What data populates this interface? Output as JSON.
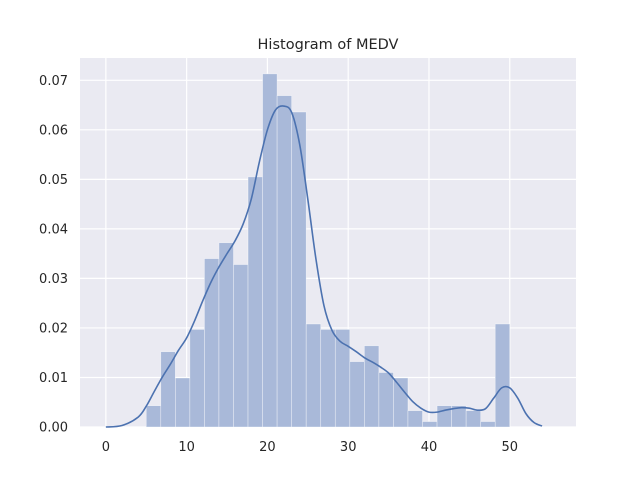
{
  "chart_data": {
    "type": "bar",
    "title": "Histogram of MEDV",
    "xlabel": "",
    "ylabel": "",
    "xlim": [
      -3.2,
      58.2
    ],
    "ylim": [
      0,
      0.0745
    ],
    "x_ticks": [
      0,
      10,
      20,
      30,
      40,
      50
    ],
    "y_ticks": [
      0.0,
      0.01,
      0.02,
      0.03,
      0.04,
      0.05,
      0.06,
      0.07
    ],
    "y_tick_labels": [
      "0.00",
      "0.01",
      "0.02",
      "0.03",
      "0.04",
      "0.05",
      "0.06",
      "0.07"
    ],
    "grid": true,
    "background_color": "#eaeaf2",
    "bar_color": "#a9b9d9",
    "kde_color": "#4c72b0",
    "bins": [
      {
        "x0": 5.0,
        "x1": 6.8,
        "density": 0.0043
      },
      {
        "x0": 6.8,
        "x1": 8.6,
        "density": 0.0152
      },
      {
        "x0": 8.6,
        "x1": 10.4,
        "density": 0.0099
      },
      {
        "x0": 10.4,
        "x1": 12.2,
        "density": 0.0197
      },
      {
        "x0": 12.2,
        "x1": 14.0,
        "density": 0.034
      },
      {
        "x0": 14.0,
        "x1": 15.8,
        "density": 0.0372
      },
      {
        "x0": 15.8,
        "x1": 17.6,
        "density": 0.0328
      },
      {
        "x0": 17.6,
        "x1": 19.4,
        "density": 0.0505
      },
      {
        "x0": 19.4,
        "x1": 21.2,
        "density": 0.0713
      },
      {
        "x0": 21.2,
        "x1": 23.0,
        "density": 0.0669
      },
      {
        "x0": 23.0,
        "x1": 24.8,
        "density": 0.0636
      },
      {
        "x0": 24.8,
        "x1": 26.6,
        "density": 0.0208
      },
      {
        "x0": 26.6,
        "x1": 28.4,
        "density": 0.0197
      },
      {
        "x0": 28.4,
        "x1": 30.2,
        "density": 0.0197
      },
      {
        "x0": 30.2,
        "x1": 32.0,
        "density": 0.0132
      },
      {
        "x0": 32.0,
        "x1": 33.8,
        "density": 0.0164
      },
      {
        "x0": 33.8,
        "x1": 35.6,
        "density": 0.011
      },
      {
        "x0": 35.6,
        "x1": 37.4,
        "density": 0.0099
      },
      {
        "x0": 37.4,
        "x1": 39.2,
        "density": 0.0033
      },
      {
        "x0": 39.2,
        "x1": 41.0,
        "density": 0.0011
      },
      {
        "x0": 41.0,
        "x1": 42.8,
        "density": 0.0043
      },
      {
        "x0": 42.8,
        "x1": 44.6,
        "density": 0.0043
      },
      {
        "x0": 44.6,
        "x1": 46.4,
        "density": 0.0033
      },
      {
        "x0": 46.4,
        "x1": 48.2,
        "density": 0.0011
      },
      {
        "x0": 48.2,
        "x1": 50.0,
        "density": 0.0208
      }
    ],
    "kde": {
      "x": [
        0,
        2,
        4,
        5,
        6,
        7,
        8,
        9,
        10,
        11,
        12,
        13,
        14,
        15,
        16,
        17,
        18,
        19,
        20,
        21,
        22,
        23,
        24,
        25,
        26,
        27,
        28,
        29,
        30,
        31,
        32,
        33,
        34,
        35,
        36,
        37,
        38,
        39,
        40,
        41,
        42,
        43,
        44,
        45,
        46,
        47,
        48,
        49,
        50,
        51,
        52,
        53,
        54
      ],
      "y": [
        0.0,
        0.0003,
        0.002,
        0.0042,
        0.0072,
        0.0101,
        0.0127,
        0.0155,
        0.018,
        0.0215,
        0.0255,
        0.0292,
        0.0323,
        0.035,
        0.0376,
        0.041,
        0.046,
        0.0535,
        0.06,
        0.064,
        0.0648,
        0.0635,
        0.057,
        0.046,
        0.034,
        0.0245,
        0.0195,
        0.0173,
        0.0163,
        0.0152,
        0.014,
        0.0131,
        0.0121,
        0.0109,
        0.009,
        0.007,
        0.0051,
        0.0038,
        0.003,
        0.003,
        0.0034,
        0.0037,
        0.0039,
        0.0038,
        0.0034,
        0.0037,
        0.0058,
        0.0079,
        0.0079,
        0.0058,
        0.0027,
        0.0009,
        0.0002
      ]
    }
  }
}
